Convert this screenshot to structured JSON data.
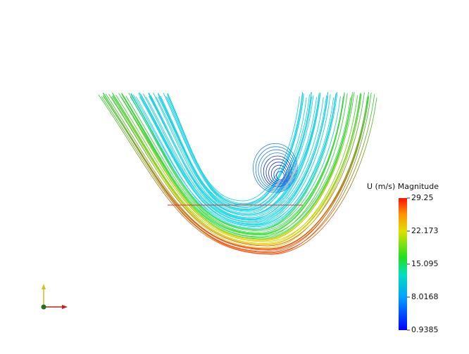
{
  "colorbar": {
    "title": "U (m/s) Magnitude",
    "range": [
      0.9385,
      29.25
    ],
    "ticks": [
      29.25,
      22.173,
      15.095,
      8.0168,
      0.9385
    ]
  }
}
